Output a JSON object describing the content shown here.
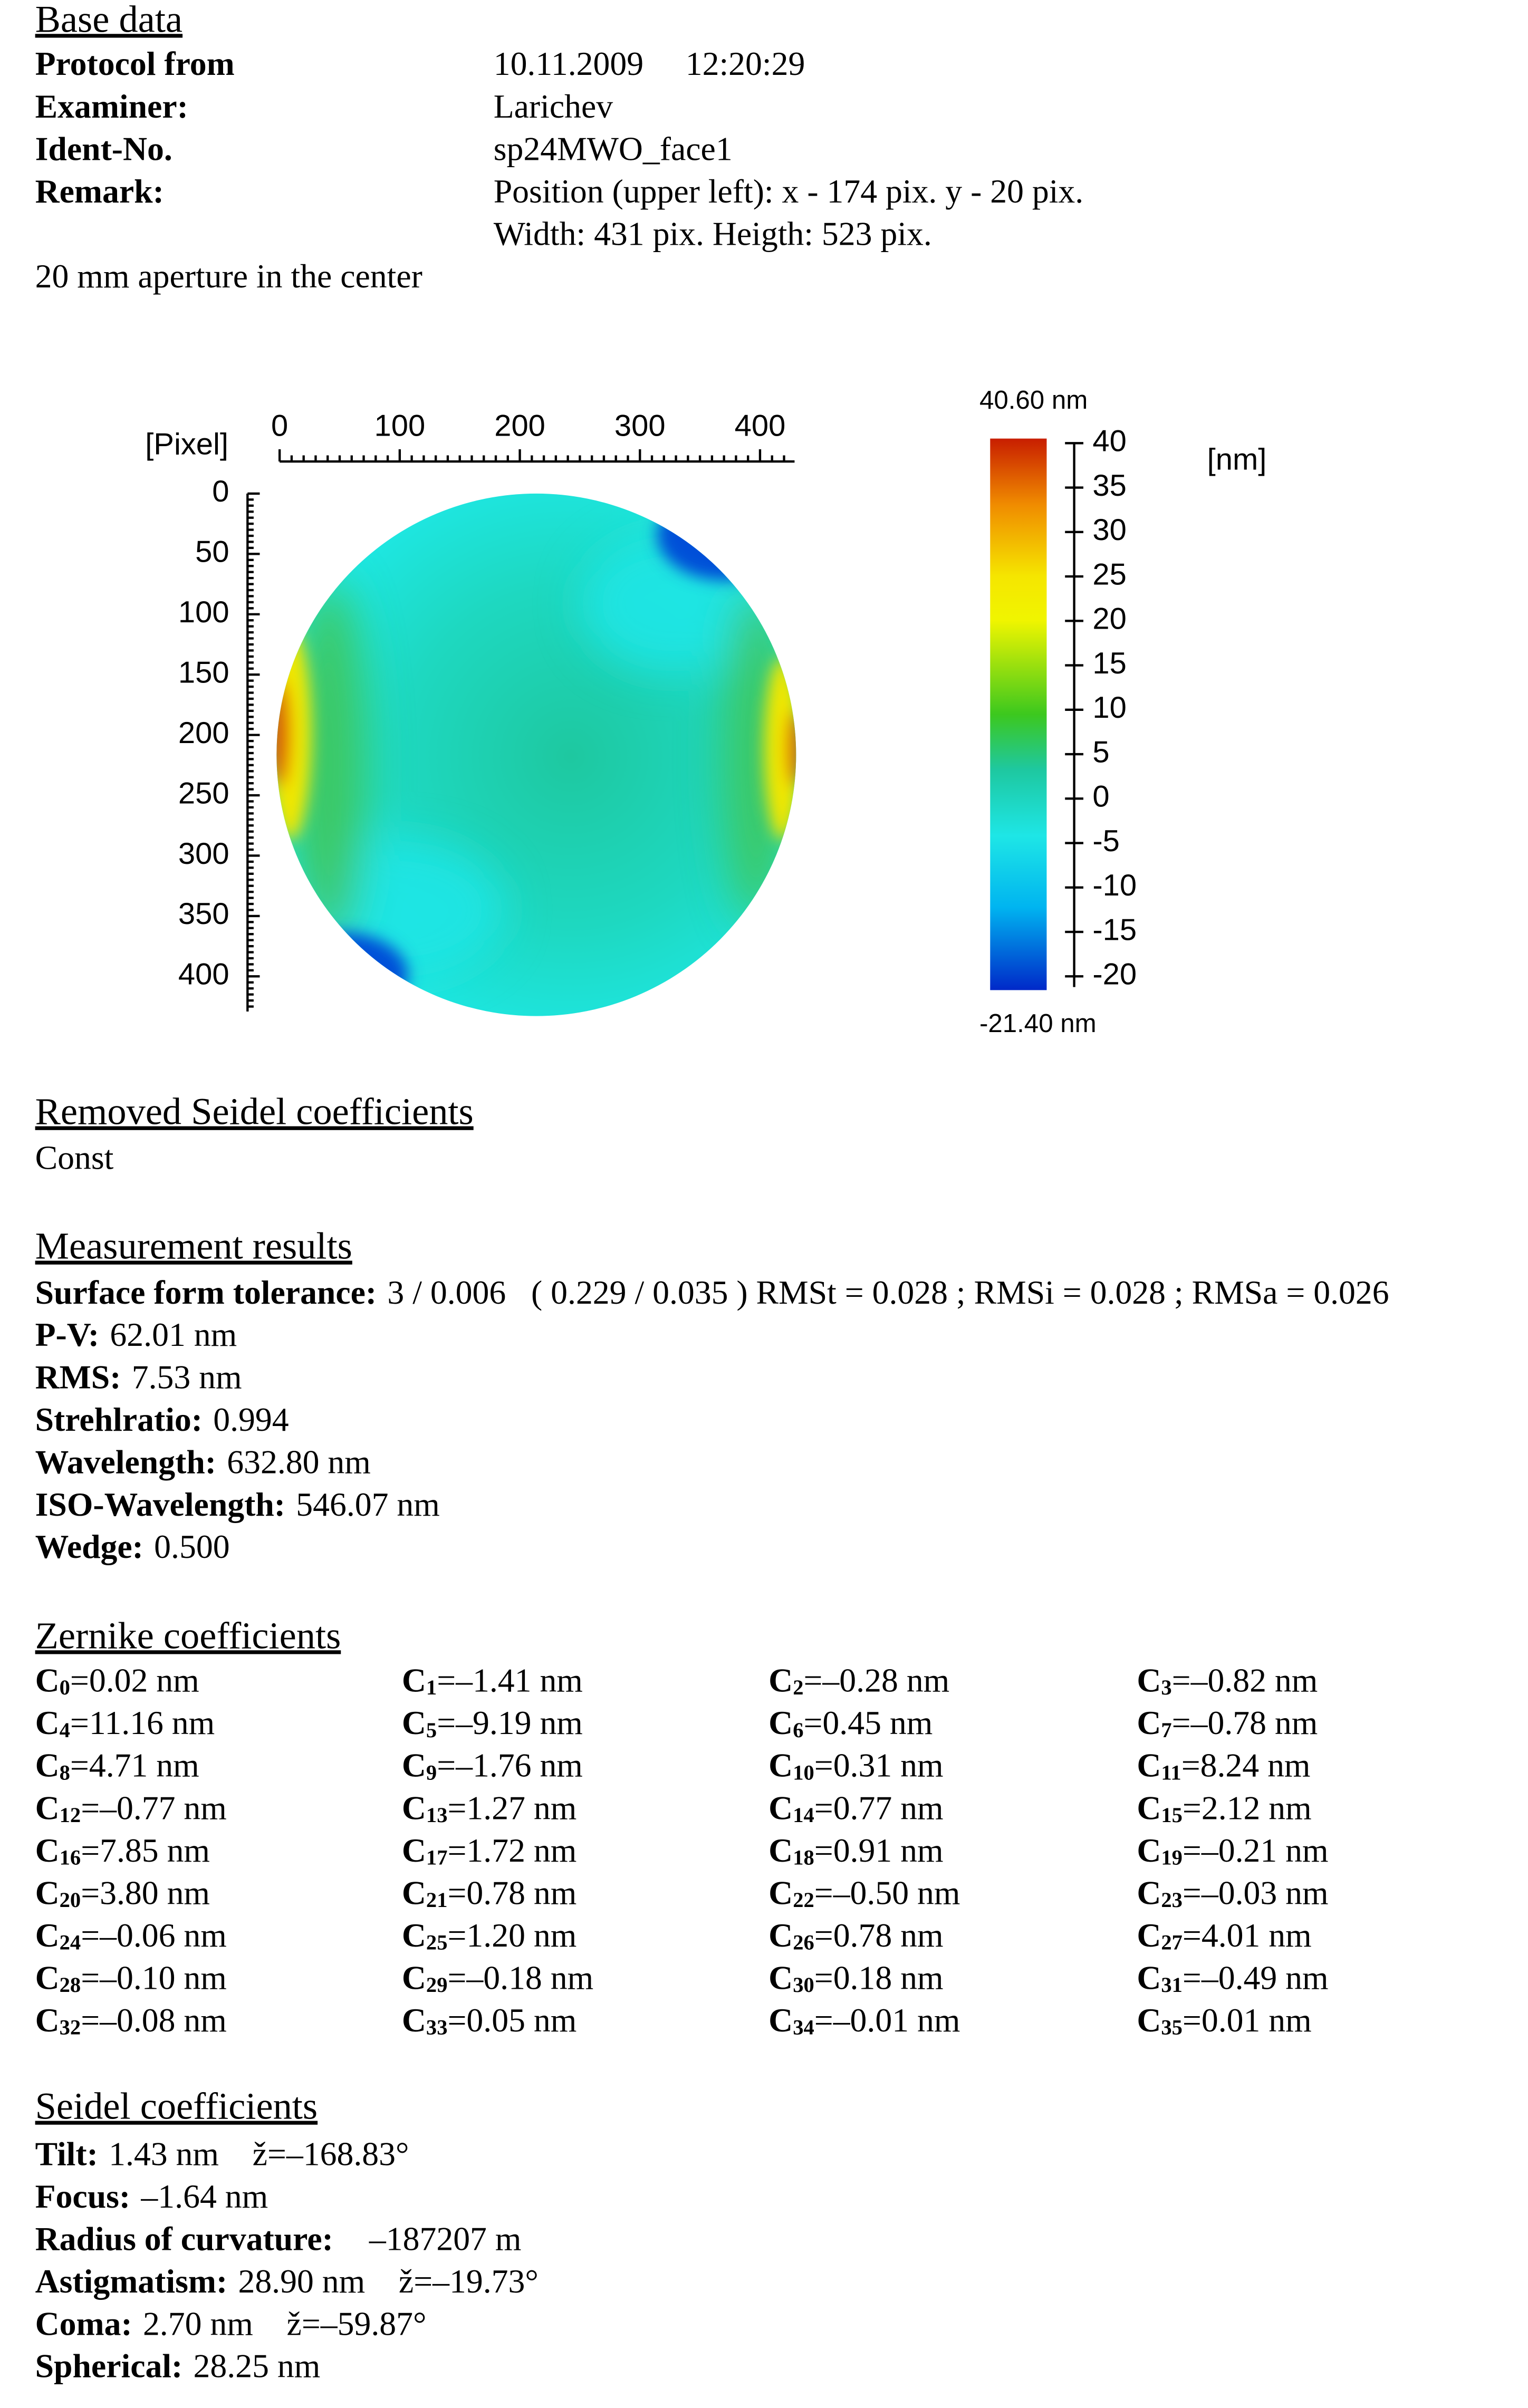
{
  "base_data": {
    "title": "Base data",
    "rows": [
      {
        "label": "Protocol from",
        "lines": [
          "10.11.2009     12:20:29"
        ]
      },
      {
        "label": "Examiner:",
        "lines": [
          "Larichev"
        ]
      },
      {
        "label": "Ident-No.",
        "lines": [
          "sp24MWO_face1"
        ]
      },
      {
        "label": "Remark:",
        "lines": [
          "Position (upper left): x - 174 pix. y - 20 pix.",
          "Width: 431 pix. Heigth: 523 pix."
        ]
      }
    ],
    "note": "20 mm aperture in the center"
  },
  "surface_map": {
    "axis_label": "[Pixel]",
    "x_ticks": [
      0,
      100,
      200,
      300,
      400
    ],
    "y_ticks": [
      0,
      50,
      100,
      150,
      200,
      250,
      300,
      350,
      400
    ],
    "colorbar": {
      "max_label": "40.60 nm",
      "min_label": "-21.40 nm",
      "unit": "[nm]",
      "ticks": [
        40,
        35,
        30,
        25,
        20,
        15,
        10,
        5,
        0,
        -5,
        -10,
        -15,
        -20
      ]
    }
  },
  "removed_seidel": {
    "title": "Removed Seidel coefficients",
    "items": [
      "Const"
    ]
  },
  "measurement": {
    "title": "Measurement results",
    "rows": [
      {
        "label": "Surface form tolerance:",
        "value": "3 / 0.006   ( 0.229 / 0.035 ) RMSt = 0.028 ; RMSi = 0.028 ; RMSa = 0.026"
      },
      {
        "label": "P-V:",
        "value": "62.01 nm"
      },
      {
        "label": "RMS:",
        "value": "7.53 nm"
      },
      {
        "label": "Strehlratio:",
        "value": "0.994"
      },
      {
        "label": "Wavelength:",
        "value": "632.80 nm"
      },
      {
        "label": "ISO-Wavelength:",
        "value": "546.07 nm"
      },
      {
        "label": "Wedge:",
        "value": "0.500"
      }
    ]
  },
  "zernike": {
    "title": "Zernike coefficients",
    "items": [
      {
        "symbol": "C",
        "sub": "0",
        "text": "=0.02 nm"
      },
      {
        "symbol": "C",
        "sub": "1",
        "text": "=–1.41 nm"
      },
      {
        "symbol": "C",
        "sub": "2",
        "text": "=–0.28 nm"
      },
      {
        "symbol": "C",
        "sub": "3",
        "text": "=–0.82 nm"
      },
      {
        "symbol": "C",
        "sub": "4",
        "text": "=11.16 nm"
      },
      {
        "symbol": "C",
        "sub": "5",
        "text": "=–9.19 nm"
      },
      {
        "symbol": "C",
        "sub": "6",
        "text": "=0.45 nm"
      },
      {
        "symbol": "C",
        "sub": "7",
        "text": "=–0.78 nm"
      },
      {
        "symbol": "C",
        "sub": "8",
        "text": "=4.71 nm"
      },
      {
        "symbol": "C",
        "sub": "9",
        "text": "=–1.76 nm"
      },
      {
        "symbol": "C",
        "sub": "10",
        "text": "=0.31 nm"
      },
      {
        "symbol": "C",
        "sub": "11",
        "text": "=8.24 nm"
      },
      {
        "symbol": "C",
        "sub": "12",
        "text": "=–0.77 nm"
      },
      {
        "symbol": "C",
        "sub": "13",
        "text": "=1.27 nm"
      },
      {
        "symbol": "C",
        "sub": "14",
        "text": "=0.77 nm"
      },
      {
        "symbol": "C",
        "sub": "15",
        "text": "=2.12 nm"
      },
      {
        "symbol": "C",
        "sub": "16",
        "text": "=7.85 nm"
      },
      {
        "symbol": "C",
        "sub": "17",
        "text": "=1.72 nm"
      },
      {
        "symbol": "C",
        "sub": "18",
        "text": "=0.91 nm"
      },
      {
        "symbol": "C",
        "sub": "19",
        "text": "=–0.21 nm"
      },
      {
        "symbol": "C",
        "sub": "20",
        "text": "=3.80 nm"
      },
      {
        "symbol": "C",
        "sub": "21",
        "text": "=0.78 nm"
      },
      {
        "symbol": "C",
        "sub": "22",
        "text": "=–0.50 nm"
      },
      {
        "symbol": "C",
        "sub": "23",
        "text": "=–0.03 nm"
      },
      {
        "symbol": "C",
        "sub": "24",
        "text": "=–0.06 nm"
      },
      {
        "symbol": "C",
        "sub": "25",
        "text": "=1.20 nm"
      },
      {
        "symbol": "C",
        "sub": "26",
        "text": "=0.78 nm"
      },
      {
        "symbol": "C",
        "sub": "27",
        "text": "=4.01 nm"
      },
      {
        "symbol": "C",
        "sub": "28",
        "text": "=–0.10 nm"
      },
      {
        "symbol": "C",
        "sub": "29",
        "text": "=–0.18 nm"
      },
      {
        "symbol": "C",
        "sub": "30",
        "text": "=0.18 nm"
      },
      {
        "symbol": "C",
        "sub": "31",
        "text": "=–0.49 nm"
      },
      {
        "symbol": "C",
        "sub": "32",
        "text": "=–0.08 nm"
      },
      {
        "symbol": "C",
        "sub": "33",
        "text": "=0.05 nm"
      },
      {
        "symbol": "C",
        "sub": "34",
        "text": "=–0.01 nm"
      },
      {
        "symbol": "C",
        "sub": "35",
        "text": "=0.01 nm"
      }
    ]
  },
  "seidel": {
    "title": "Seidel coefficients",
    "rows": [
      {
        "label": "Tilt:",
        "value": "1.43 nm    ž=–168.83°"
      },
      {
        "label": "Focus:",
        "value": "–1.64 nm"
      },
      {
        "label": "Radius of curvature:",
        "value": "   –187207 m"
      },
      {
        "label": "Astigmatism:",
        "value": "28.90 nm    ž=–19.73°"
      },
      {
        "label": "Coma:",
        "value": "2.70 nm    ž=–59.87°"
      },
      {
        "label": "Spherical:",
        "value": "28.25 nm"
      }
    ]
  }
}
